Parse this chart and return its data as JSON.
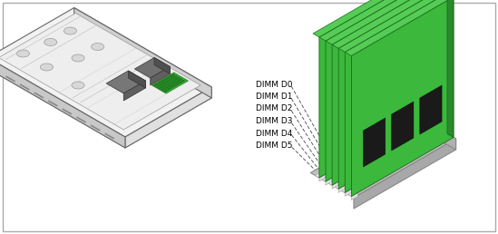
{
  "background_color": "#ffffff",
  "border_color": "#aaaaaa",
  "dimm_labels": [
    "DIMM D0",
    "DIMM D1",
    "DIMM D2",
    "DIMM D3",
    "DIMM D4",
    "DIMM D5"
  ],
  "font_size": 6.5,
  "fig_width": 5.49,
  "fig_height": 2.58,
  "dimm_green": "#3cb83c",
  "dimm_dark_green": "#2a8a2a",
  "dimm_edge": "#1a6a1a",
  "chip_color": "#1a1a1a",
  "slot_gray": "#b8b8b8",
  "slot_dark": "#888888",
  "white_clip": "#f0f0f0",
  "chassis_light": "#f2f2f2",
  "chassis_mid": "#e0e0e0",
  "chassis_dark": "#c8c8c8",
  "chassis_edge": "#666666",
  "cpu_color": "#777777",
  "cpu_edge": "#444444"
}
